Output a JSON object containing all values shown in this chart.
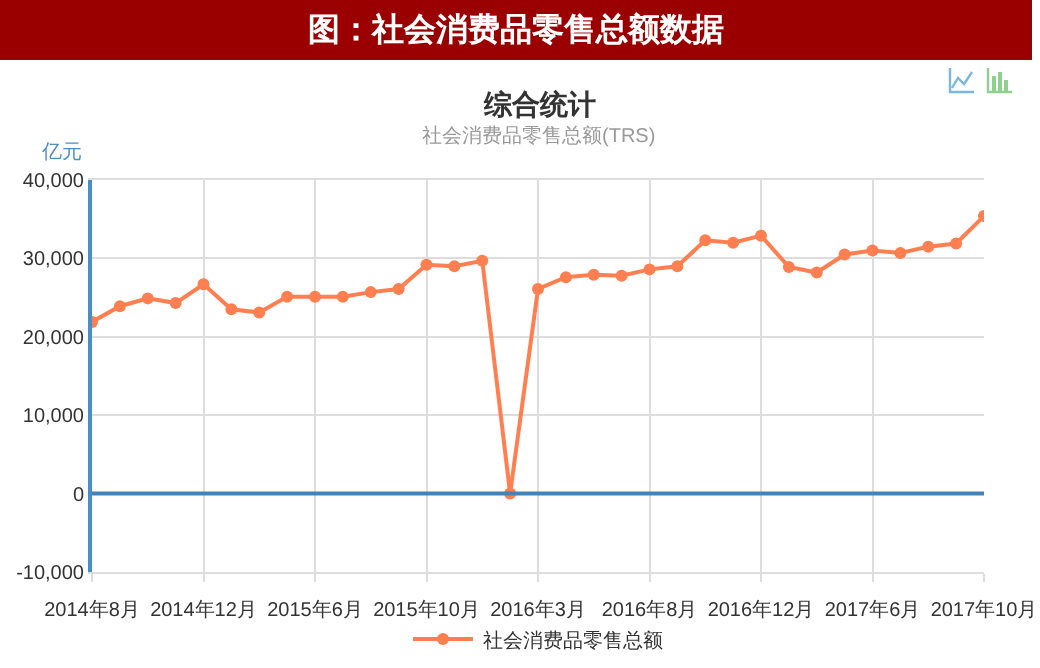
{
  "chart_data": {
    "type": "line",
    "title": "图：社会消费品零售总额数据",
    "subtitle": "综合统计",
    "annotations": [
      "社会消费品零售总额(TRS)"
    ],
    "ylabel": "亿元",
    "categories": [
      "2014年8月",
      null,
      null,
      null,
      "2014年12月",
      null,
      null,
      null,
      "2015年6月",
      null,
      null,
      null,
      "2015年10月",
      null,
      null,
      null,
      "2016年3月",
      null,
      null,
      null,
      "2016年8月",
      null,
      null,
      null,
      "2016年12月",
      null,
      null,
      null,
      "2017年6月",
      null,
      null,
      null,
      "2017年10月"
    ],
    "series": [
      {
        "name": "社会消费品零售总额",
        "color": "#ff7f50",
        "values": [
          21900,
          23900,
          24900,
          24300,
          26700,
          23500,
          23100,
          25100,
          25100,
          25100,
          25700,
          26100,
          29200,
          29000,
          29700,
          0,
          26100,
          27600,
          27900,
          27800,
          28600,
          29000,
          32300,
          32000,
          32900,
          28900,
          28200,
          30500,
          31000,
          30700,
          31500,
          31900,
          35400
        ]
      }
    ],
    "ylim": [
      -10000,
      40000
    ],
    "yticks": [
      {
        "value": -10000,
        "label": "-10,000"
      },
      0,
      {
        "value": 10000,
        "label": "10,000"
      },
      {
        "value": 20000,
        "label": "20,000"
      },
      {
        "value": 30000,
        "label": "30,000"
      },
      {
        "value": 40000,
        "label": "40,000"
      }
    ],
    "ref_lines": [
      {
        "axis": "y",
        "value": 0,
        "color": "#4682b4"
      }
    ],
    "grid": true,
    "legend": "bottom",
    "marker": "circle",
    "line_style": "solid"
  }
}
